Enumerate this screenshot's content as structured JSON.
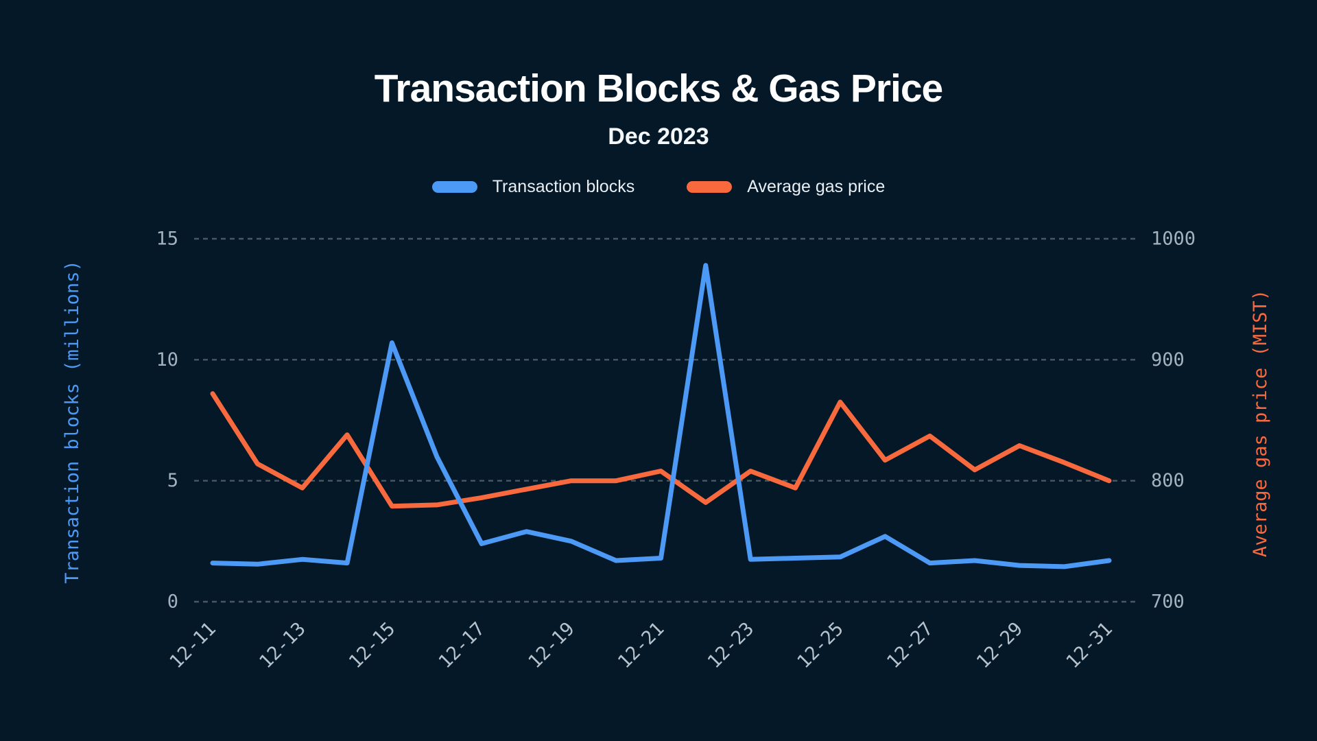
{
  "header": {
    "title": "Transaction Blocks & Gas Price",
    "subtitle": "Dec 2023"
  },
  "legend": {
    "items": [
      {
        "label": "Transaction blocks",
        "color": "#4d9af6"
      },
      {
        "label": "Average gas price",
        "color": "#f9693e"
      }
    ]
  },
  "colors": {
    "background": "#041828",
    "grid": "#4a5864",
    "numeric_tick_text": "#a3b2bd",
    "date_tick_text": "#b7c3cc",
    "title_text": "#ffffff",
    "blue_series": "#4d9af6",
    "orange_series": "#f9693e"
  },
  "chart_data": {
    "type": "line",
    "title": "Transaction Blocks & Gas Price",
    "subtitle": "Dec 2023",
    "grid": "horizontal dashed",
    "legend_position": "top center",
    "categories": [
      "12-11",
      "12-12",
      "12-13",
      "12-14",
      "12-15",
      "12-16",
      "12-17",
      "12-18",
      "12-19",
      "12-20",
      "12-21",
      "12-22",
      "12-23",
      "12-24",
      "12-25",
      "12-26",
      "12-27",
      "12-28",
      "12-29",
      "12-30",
      "12-31"
    ],
    "x_tick_labels": [
      "12-11",
      "12-13",
      "12-15",
      "12-17",
      "12-19",
      "12-21",
      "12-23",
      "12-25",
      "12-27",
      "12-29",
      "12-31"
    ],
    "series": [
      {
        "name": "Transaction blocks",
        "axis": "left",
        "color": "#4d9af6",
        "values": [
          1.6,
          1.55,
          1.75,
          1.6,
          10.7,
          6.0,
          2.4,
          2.9,
          2.5,
          1.7,
          1.8,
          13.9,
          1.75,
          1.8,
          1.85,
          2.7,
          1.6,
          1.7,
          1.5,
          1.45,
          1.7
        ]
      },
      {
        "name": "Average gas price",
        "axis": "right",
        "color": "#f9693e",
        "values": [
          872,
          814,
          794,
          838,
          779,
          780,
          786,
          793,
          800,
          800,
          808,
          782,
          808,
          794,
          865,
          817,
          837,
          809,
          829,
          815,
          800
        ]
      }
    ],
    "left_axis": {
      "label": "Transaction blocks (millions)",
      "tick_labels": [
        "0",
        "5",
        "10",
        "15"
      ],
      "ticks": [
        0,
        5,
        10,
        15
      ],
      "range": [
        0,
        15
      ]
    },
    "right_axis": {
      "label": "Average gas price (MIST)",
      "tick_labels": [
        "700",
        "800",
        "900",
        "1000"
      ],
      "ticks": [
        700,
        800,
        900,
        1000
      ],
      "range": [
        700,
        1000
      ]
    }
  }
}
